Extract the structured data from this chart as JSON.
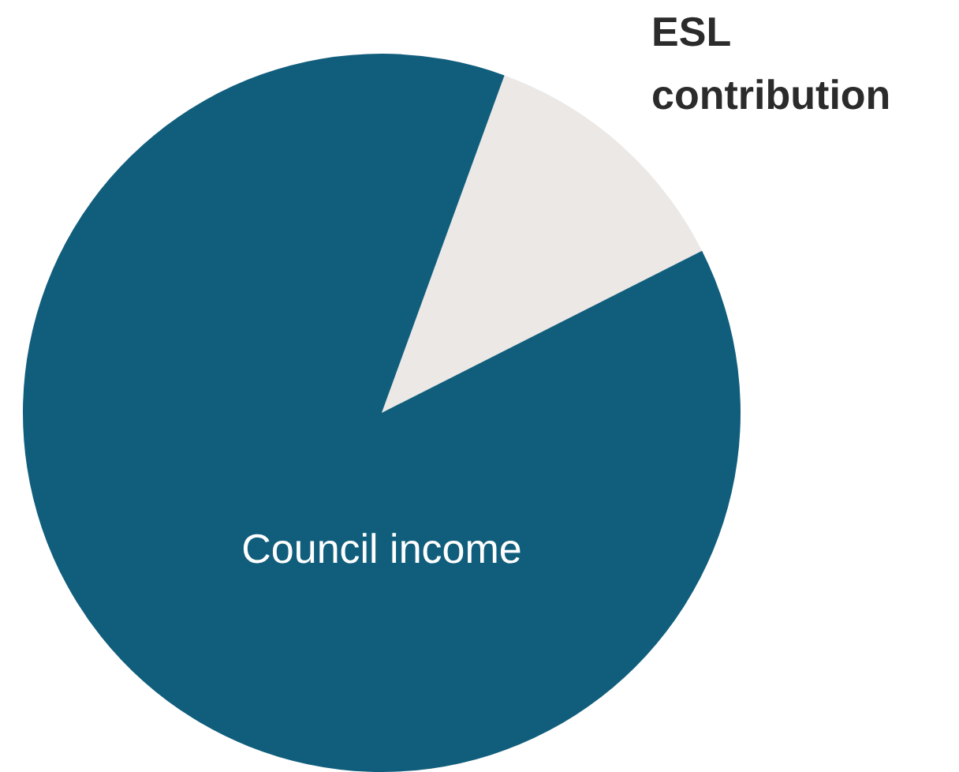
{
  "chart_data": {
    "type": "pie",
    "categories": [
      "ESL contribution",
      "Council income"
    ],
    "values": [
      12,
      88
    ],
    "colors": [
      "#ece8e5",
      "#115e7c"
    ],
    "legend": false
  }
}
